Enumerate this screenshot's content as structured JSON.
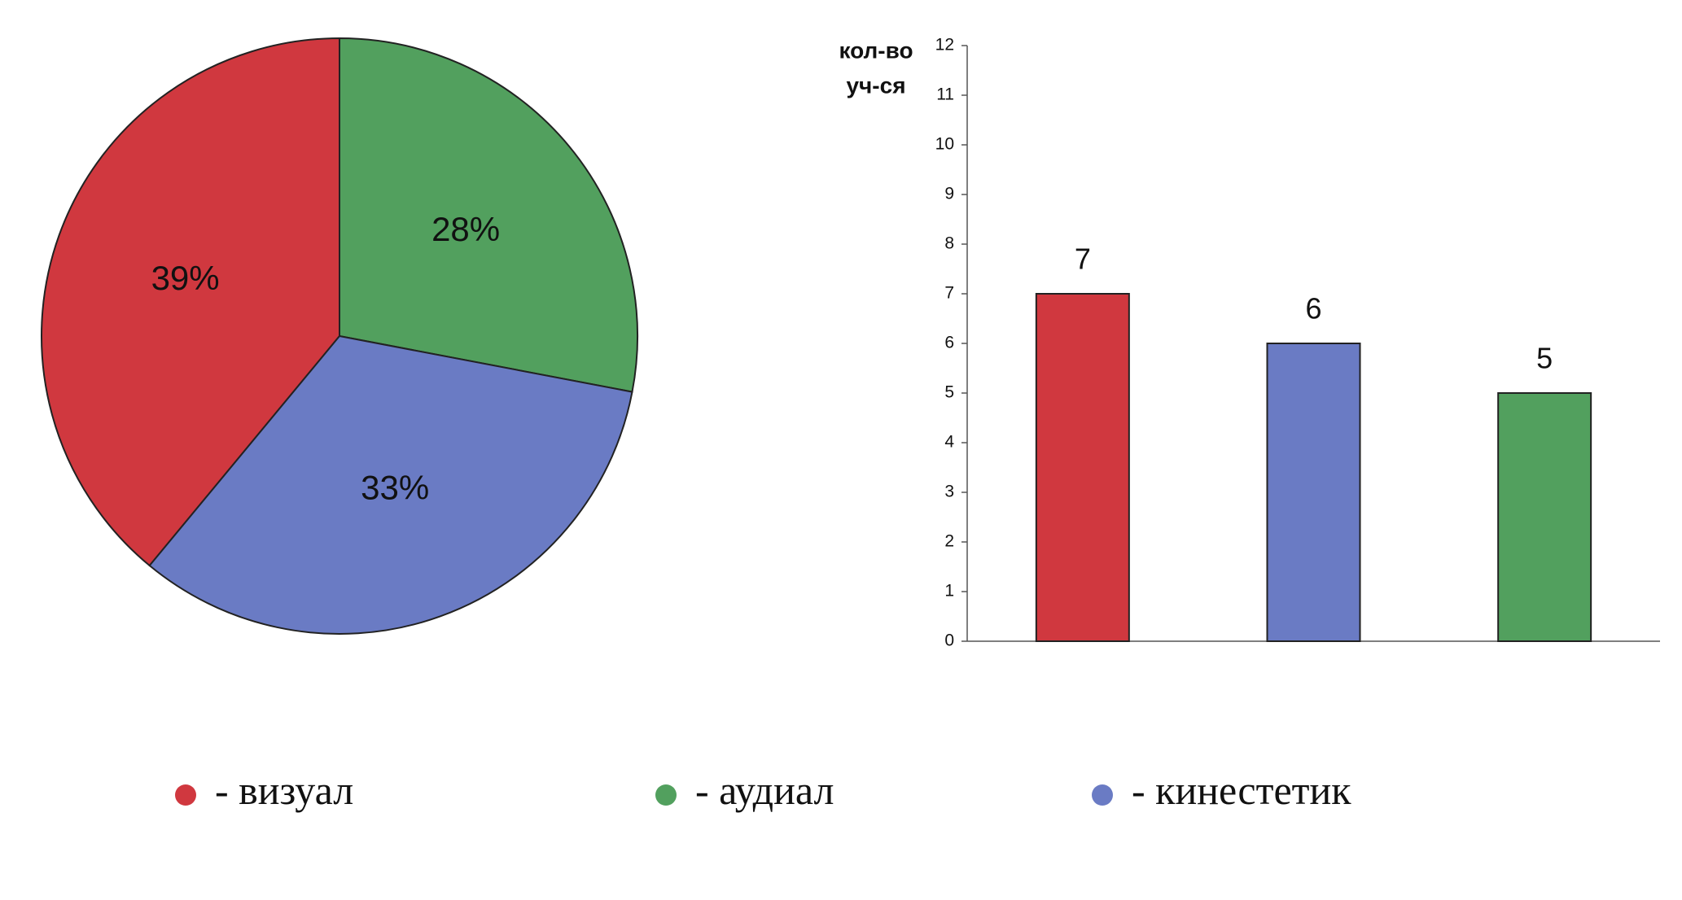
{
  "chart_data": [
    {
      "type": "pie",
      "categories": [
        "визуал",
        "аудиал",
        "кинестетик"
      ],
      "values": [
        39,
        28,
        33
      ],
      "value_labels": [
        "39%",
        "28%",
        "33%"
      ],
      "colors": [
        "#d0383f",
        "#52a05e",
        "#6a7bc4"
      ]
    },
    {
      "type": "bar",
      "ylabel": [
        "кол-во",
        "уч-ся"
      ],
      "categories": [
        null,
        null,
        null
      ],
      "values": [
        7,
        6,
        5
      ],
      "colors": [
        "#d0383f",
        "#6a7bc4",
        "#52a05e"
      ],
      "ylim": [
        0,
        12
      ],
      "yticks": [
        0,
        1,
        2,
        3,
        4,
        5,
        6,
        7,
        8,
        9,
        10,
        11,
        12
      ]
    }
  ]
}
